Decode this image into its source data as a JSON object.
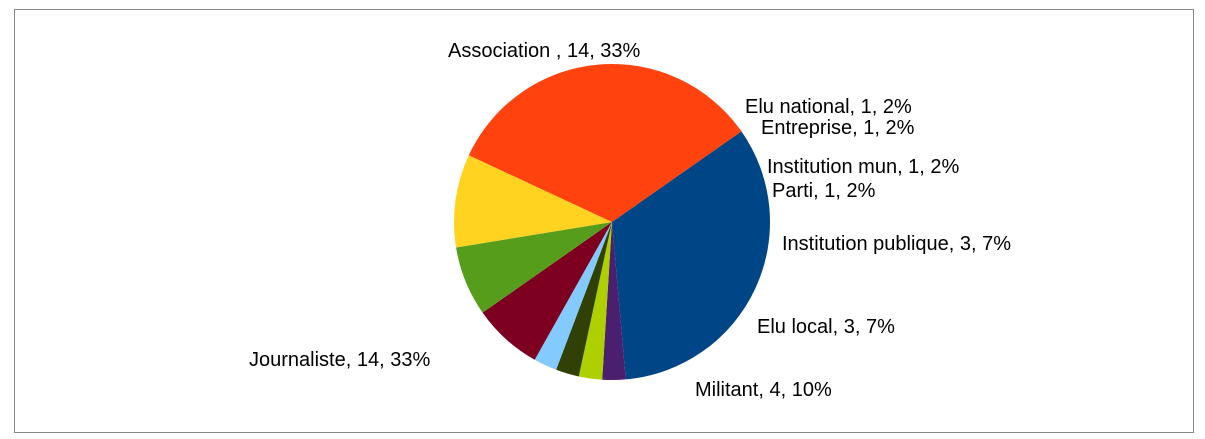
{
  "chart_data": {
    "type": "pie",
    "title": "",
    "slices": [
      {
        "category": "Association ",
        "value": 14,
        "percent": "33%",
        "label": "Association , 14, 33%",
        "color": "#004586"
      },
      {
        "category": "Elu national",
        "value": 1,
        "percent": "2%",
        "label": "Elu national, 1, 2%",
        "color": "#4b1f6f"
      },
      {
        "category": "Entreprise",
        "value": 1,
        "percent": "2%",
        "label": "Entreprise, 1, 2%",
        "color": "#aecf00"
      },
      {
        "category": "Institution mun",
        "value": 1,
        "percent": "2%",
        "label": "Institution mun, 1, 2%",
        "color": "#314004"
      },
      {
        "category": "Parti",
        "value": 1,
        "percent": "2%",
        "label": "Parti, 1, 2%",
        "color": "#83caff"
      },
      {
        "category": "Institution publique",
        "value": 3,
        "percent": "7%",
        "label": "Institution publique, 3, 7%",
        "color": "#7e0021"
      },
      {
        "category": "Elu local",
        "value": 3,
        "percent": "7%",
        "label": "Elu local, 3, 7%",
        "color": "#579d1c"
      },
      {
        "category": "Militant",
        "value": 4,
        "percent": "10%",
        "label": "Militant, 4, 10%",
        "color": "#ffd320"
      },
      {
        "category": "Journaliste",
        "value": 14,
        "percent": "33%",
        "label": "Journaliste, 14, 33%",
        "color": "#ff420e"
      }
    ],
    "legend": "none",
    "data_labels": "outside"
  }
}
